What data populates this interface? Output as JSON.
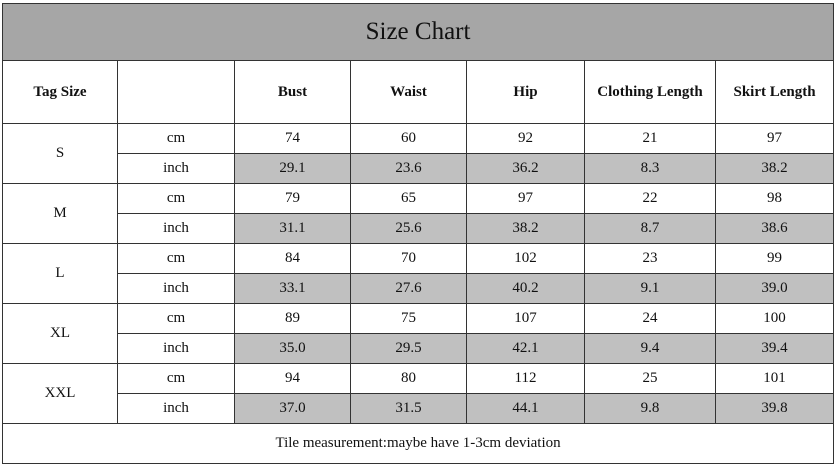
{
  "title": "Size Chart",
  "header": {
    "tag_size": "Tag Size",
    "columns": [
      "Bust",
      "Waist",
      "Hip",
      "Clothing Length",
      "Skirt Length"
    ]
  },
  "sizes": [
    {
      "size": "S",
      "rows": [
        {
          "unit": "cm",
          "values": [
            "74",
            "60",
            "92",
            "21",
            "97"
          ]
        },
        {
          "unit": "inch",
          "values": [
            "29.1",
            "23.6",
            "36.2",
            "8.3",
            "38.2"
          ]
        }
      ]
    },
    {
      "size": "M",
      "rows": [
        {
          "unit": "cm",
          "values": [
            "79",
            "65",
            "97",
            "22",
            "98"
          ]
        },
        {
          "unit": "inch",
          "values": [
            "31.1",
            "25.6",
            "38.2",
            "8.7",
            "38.6"
          ]
        }
      ]
    },
    {
      "size": "L",
      "rows": [
        {
          "unit": "cm",
          "values": [
            "84",
            "70",
            "102",
            "23",
            "99"
          ]
        },
        {
          "unit": "inch",
          "values": [
            "33.1",
            "27.6",
            "40.2",
            "9.1",
            "39.0"
          ]
        }
      ]
    },
    {
      "size": "XL",
      "rows": [
        {
          "unit": "cm",
          "values": [
            "89",
            "75",
            "107",
            "24",
            "100"
          ]
        },
        {
          "unit": "inch",
          "values": [
            "35.0",
            "29.5",
            "42.1",
            "9.4",
            "39.4"
          ]
        }
      ]
    },
    {
      "size": "XXL",
      "rows": [
        {
          "unit": "cm",
          "values": [
            "94",
            "80",
            "112",
            "25",
            "101"
          ]
        },
        {
          "unit": "inch",
          "values": [
            "37.0",
            "31.5",
            "44.1",
            "9.8",
            "39.8"
          ]
        }
      ]
    }
  ],
  "footer": "Tile measurement:maybe have 1-3cm deviation"
}
